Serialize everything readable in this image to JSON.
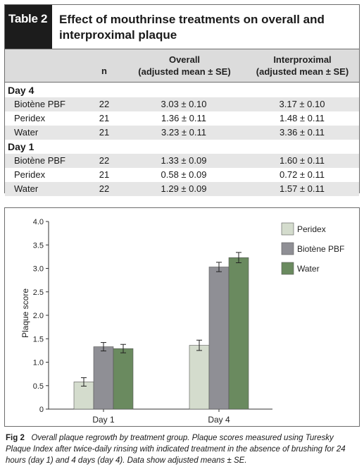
{
  "table": {
    "tag": "Table 2",
    "title_line1": "Effect of mouthrinse treatments on overall and",
    "title_line2": "interproximal plaque",
    "headers": {
      "n": "n",
      "overall_1": "Overall",
      "overall_2": "(adjusted mean ± SE)",
      "inter_1": "Interproximal",
      "inter_2": "(adjusted mean ± SE)"
    },
    "groups": [
      {
        "label": "Day 4",
        "rows": [
          {
            "name": "Biotène PBF",
            "n": "22",
            "overall": "3.03 ± 0.10",
            "inter": "3.17 ± 0.10"
          },
          {
            "name": "Peridex",
            "n": "21",
            "overall": "1.36 ± 0.11",
            "inter": "1.48 ± 0.11"
          },
          {
            "name": "Water",
            "n": "21",
            "overall": "3.23 ± 0.11",
            "inter": "3.36 ± 0.11"
          }
        ]
      },
      {
        "label": "Day 1",
        "rows": [
          {
            "name": "Biotène PBF",
            "n": "22",
            "overall": "1.33 ± 0.09",
            "inter": "1.60 ± 0.11"
          },
          {
            "name": "Peridex",
            "n": "21",
            "overall": "0.58 ± 0.09",
            "inter": "0.72 ± 0.11"
          },
          {
            "name": "Water",
            "n": "22",
            "overall": "1.29 ± 0.09",
            "inter": "1.57 ± 0.11"
          }
        ]
      }
    ]
  },
  "chart_data": {
    "type": "bar",
    "categories": [
      "Day 1",
      "Day 4"
    ],
    "series": [
      {
        "name": "Peridex",
        "values": [
          0.58,
          1.36
        ],
        "errors": [
          0.09,
          0.11
        ],
        "color": "#d4dccd"
      },
      {
        "name": "Biotène PBF",
        "values": [
          1.33,
          3.03
        ],
        "errors": [
          0.09,
          0.1
        ],
        "color": "#8f8f95"
      },
      {
        "name": "Water",
        "values": [
          1.29,
          3.23
        ],
        "errors": [
          0.09,
          0.11
        ],
        "color": "#6a8a5f"
      }
    ],
    "ylabel": "Plaque score",
    "ylim": [
      0,
      4.0
    ],
    "yticks": [
      "0",
      "0.5",
      "1.0",
      "1.5",
      "2.0",
      "2.5",
      "3.0",
      "3.5",
      "4.0"
    ],
    "grid": false,
    "legend": "top-right"
  },
  "caption": {
    "lead": "Fig 2",
    "text": "Overall plaque regrowth by treatment group. Plaque scores measured using Turesky Plaque Index after twice-daily rinsing with indicated treatment in the absence of brushing for 24 hours (day 1) and 4 days (day 4). Data show adjusted means ± SE."
  }
}
